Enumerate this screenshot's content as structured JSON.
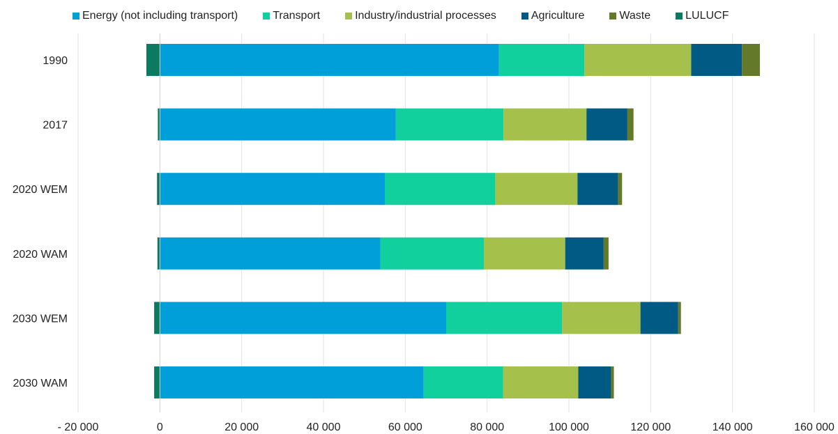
{
  "chart_data": {
    "type": "bar",
    "orientation": "horizontal",
    "stacked": true,
    "title": "",
    "xlabel": "",
    "ylabel": "",
    "categories": [
      "1990",
      "2017",
      "2020 WEM",
      "2020 WAM",
      "2030 WEM",
      "2030 WAM"
    ],
    "xlim": [
      -20000,
      160000
    ],
    "x_ticks": [
      -20000,
      0,
      20000,
      40000,
      60000,
      80000,
      100000,
      120000,
      140000,
      160000
    ],
    "x_tick_labels": [
      "- 20 000",
      "0",
      "20 000",
      "40 000",
      "60 000",
      "80 000",
      "100 000",
      "120 000",
      "140 000",
      "160 000"
    ],
    "grid": "vertical",
    "legend_position": "top",
    "series": [
      {
        "name": "Energy (not including transport)",
        "color": "#009FDA",
        "values": [
          82900,
          57700,
          55000,
          53900,
          70000,
          64500
        ]
      },
      {
        "name": "Transport",
        "color": "#12D09E",
        "values": [
          20900,
          26300,
          27000,
          25300,
          28300,
          19400
        ]
      },
      {
        "name": "Industry/industrial processes",
        "color": "#A6C14B",
        "values": [
          26100,
          20300,
          20100,
          19900,
          19200,
          18400
        ]
      },
      {
        "name": "Agriculture",
        "color": "#005A83",
        "values": [
          12400,
          10000,
          9900,
          9400,
          9200,
          8000
        ]
      },
      {
        "name": "Waste",
        "color": "#647A2A",
        "values": [
          4400,
          1500,
          1000,
          1200,
          700,
          700
        ]
      },
      {
        "name": "LULUCF",
        "color": "#0B7A60",
        "values": [
          -3300,
          -500,
          -700,
          -600,
          -1400,
          -1400
        ]
      }
    ]
  }
}
